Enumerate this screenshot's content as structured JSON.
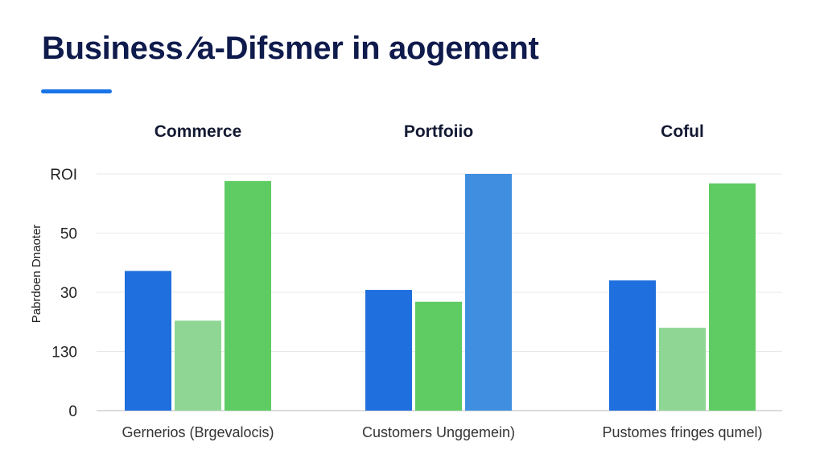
{
  "title": "Business ⁄a-Difsmer in aogement",
  "colors": {
    "title": "#0f1b4c",
    "accent": "#1a73e8",
    "grid": "#e8e8e8",
    "axis": "#d0d0d0"
  },
  "chart_data": {
    "type": "bar",
    "ylabel": "Pabrdoen Dnaoter",
    "y_ticks": [
      "0",
      "130",
      "30",
      "50",
      "ROI"
    ],
    "ylim": [
      0,
      100
    ],
    "grid": true,
    "groups": [
      {
        "title": "Commerce",
        "label": "Gernerios (Brgevalocis)",
        "bars": [
          {
            "value": 59,
            "color": "#1f6fde"
          },
          {
            "value": 38,
            "color": "#8fd694"
          },
          {
            "value": 97,
            "color": "#5ecc63"
          }
        ]
      },
      {
        "title": "Portfoiio",
        "label": "Customers Unggemein)",
        "bars": [
          {
            "value": 51,
            "color": "#1f6fde"
          },
          {
            "value": 46,
            "color": "#5ecc63"
          },
          {
            "value": 100,
            "color": "#3f8ee0"
          }
        ]
      },
      {
        "title": "Coful",
        "label": "Pustomes fringes qumel)",
        "bars": [
          {
            "value": 55,
            "color": "#1f6fde"
          },
          {
            "value": 35,
            "color": "#8fd694"
          },
          {
            "value": 96,
            "color": "#5ecc63"
          }
        ]
      }
    ]
  }
}
